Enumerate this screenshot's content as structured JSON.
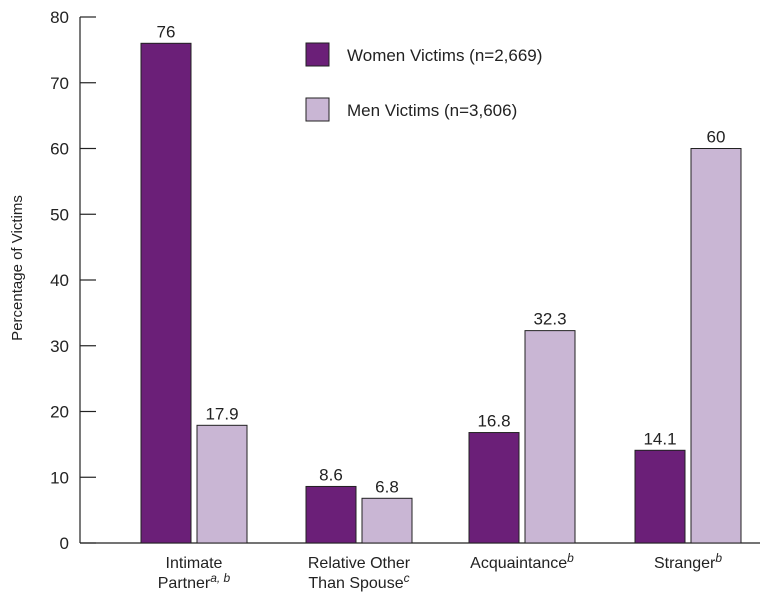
{
  "chart_data": {
    "type": "bar",
    "ylabel": "Percentage of Victims",
    "ylim": [
      0,
      80
    ],
    "yticks": [
      0,
      10,
      20,
      30,
      40,
      50,
      60,
      70,
      80
    ],
    "grid": false,
    "legend_position": "top-center",
    "categories": [
      {
        "lines": [
          {
            "text": "Intimate",
            "sup": ""
          },
          {
            "text": "Partner",
            "sup": "a, b"
          }
        ]
      },
      {
        "lines": [
          {
            "text": "Relative Other",
            "sup": ""
          },
          {
            "text": "Than Spouse",
            "sup": "c"
          }
        ]
      },
      {
        "lines": [
          {
            "text": "Acquaintance",
            "sup": "b"
          }
        ]
      },
      {
        "lines": [
          {
            "text": "Stranger",
            "sup": "b"
          }
        ]
      }
    ],
    "series": [
      {
        "name": "Women Victims (n=2,669)",
        "color": "#6b1f78",
        "values": [
          76,
          8.6,
          16.8,
          14.1
        ],
        "labels": [
          "76",
          "8.6",
          "16.8",
          "14.1"
        ]
      },
      {
        "name": "Men Victims (n=3,606)",
        "color": "#c9b6d4",
        "values": [
          17.9,
          6.8,
          32.3,
          60
        ],
        "labels": [
          "17.9",
          "6.8",
          "32.3",
          "60"
        ]
      }
    ]
  }
}
